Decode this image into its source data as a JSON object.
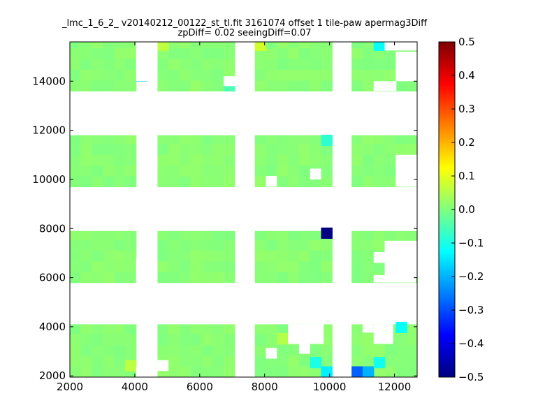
{
  "chart_data": {
    "type": "heatmap",
    "title_lines": [
      "_lmc_1_6_2_ v20140212_00122_st_tl.fit 3161074 offset 1 tile-paw apermag3Diff",
      "zpDiff= 0.02 seeingDiff=0.07"
    ],
    "xlim": [
      2000,
      12700
    ],
    "ylim": [
      1950,
      15600
    ],
    "x_ticks": [
      2000,
      4000,
      6000,
      8000,
      10000,
      12000
    ],
    "y_ticks": [
      2000,
      4000,
      6000,
      8000,
      10000,
      12000,
      14000
    ],
    "colorbar": {
      "range": [
        -0.5,
        0.5
      ],
      "ticks": [
        0.5,
        0.4,
        0.3,
        0.2,
        0.1,
        0.0,
        -0.1,
        -0.2,
        -0.3,
        -0.4,
        -0.5
      ],
      "tick_labels": [
        "0.5",
        "0.4",
        "0.3",
        "0.2",
        "0.1",
        "0.0",
        "−0.1",
        "−0.2",
        "−0.3",
        "−0.4",
        "−0.5"
      ],
      "colormap": "jet"
    },
    "cell_width": 340,
    "cell_height": 440,
    "x_bin_starts": [
      2000,
      2340,
      2680,
      3020,
      3360,
      3700,
      4040,
      4700,
      5040,
      5380,
      5720,
      6060,
      6400,
      6740,
      7700,
      8040,
      8380,
      8720,
      9060,
      9400,
      9740,
      10680,
      11020,
      11360,
      11700,
      12040,
      12380
    ],
    "grid_background_value": 0.01,
    "blocks": [
      {
        "x0": 2000,
        "x1": 4040,
        "y0": 13600,
        "y1": 15600
      },
      {
        "x0": 4700,
        "x1": 7080,
        "y0": 13600,
        "y1": 15600
      },
      {
        "x0": 7700,
        "x1": 10080,
        "y0": 13600,
        "y1": 15600
      },
      {
        "x0": 10680,
        "x1": 12720,
        "y0": 13600,
        "y1": 15600
      },
      {
        "x0": 2000,
        "x1": 4040,
        "y0": 9700,
        "y1": 11800
      },
      {
        "x0": 4700,
        "x1": 7080,
        "y0": 9700,
        "y1": 11800
      },
      {
        "x0": 7700,
        "x1": 10080,
        "y0": 9700,
        "y1": 11800
      },
      {
        "x0": 10680,
        "x1": 12720,
        "y0": 9700,
        "y1": 11800
      },
      {
        "x0": 2000,
        "x1": 4040,
        "y0": 5800,
        "y1": 7900
      },
      {
        "x0": 4700,
        "x1": 7080,
        "y0": 5800,
        "y1": 7900
      },
      {
        "x0": 7700,
        "x1": 10080,
        "y0": 5800,
        "y1": 7900
      },
      {
        "x0": 10680,
        "x1": 12720,
        "y0": 5800,
        "y1": 7900
      },
      {
        "x0": 2000,
        "x1": 4040,
        "y0": 1950,
        "y1": 4100
      },
      {
        "x0": 4700,
        "x1": 7080,
        "y0": 1950,
        "y1": 4100
      },
      {
        "x0": 7700,
        "x1": 10080,
        "y0": 1950,
        "y1": 4100
      },
      {
        "x0": 10680,
        "x1": 12720,
        "y0": 1950,
        "y1": 4100
      }
    ],
    "cells": [
      {
        "x": 4700,
        "y": 15250,
        "value": 0.06
      },
      {
        "x": 7700,
        "y": 15250,
        "value": 0.08
      },
      {
        "x": 11360,
        "y": 15250,
        "value": -0.12
      },
      {
        "x": 4040,
        "y": 14000,
        "value": -0.18
      },
      {
        "x": 6740,
        "y": 13600,
        "value": -0.05
      },
      {
        "x": 9740,
        "y": 11380,
        "value": -0.08
      },
      {
        "x": 9740,
        "y": 7600,
        "value": -0.5
      },
      {
        "x": 9400,
        "y": 2330,
        "value": -0.1
      },
      {
        "x": 9740,
        "y": 1950,
        "value": -0.14
      },
      {
        "x": 10680,
        "y": 1950,
        "value": -0.28
      },
      {
        "x": 11020,
        "y": 1950,
        "value": -0.2
      },
      {
        "x": 11360,
        "y": 2330,
        "value": -0.11
      },
      {
        "x": 12040,
        "y": 3760,
        "value": -0.12
      },
      {
        "x": 8380,
        "y": 3300,
        "value": 0.05
      },
      {
        "x": 3700,
        "y": 2200,
        "value": 0.06
      }
    ]
  }
}
